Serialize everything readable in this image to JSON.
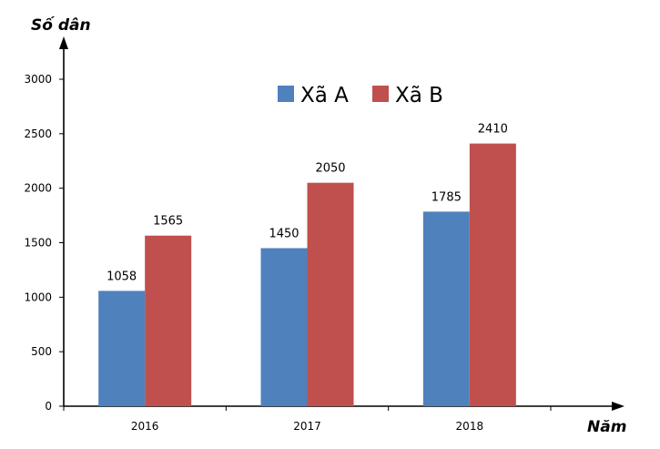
{
  "chart_data": {
    "type": "bar",
    "categories": [
      "2016",
      "2017",
      "2018"
    ],
    "series": [
      {
        "name": "Xã A",
        "values": [
          1058,
          1450,
          1785
        ],
        "color": "#4F81BD"
      },
      {
        "name": "Xã B",
        "values": [
          1565,
          2050,
          2410
        ],
        "color": "#C0504D"
      }
    ],
    "xlabel": "Năm",
    "ylabel": "Số dân",
    "ylim": [
      0,
      3000
    ],
    "yticks": [
      "0",
      "500",
      "1000",
      "1500",
      "2000",
      "2500",
      "3000"
    ],
    "grid": false,
    "legend_position": "top"
  }
}
